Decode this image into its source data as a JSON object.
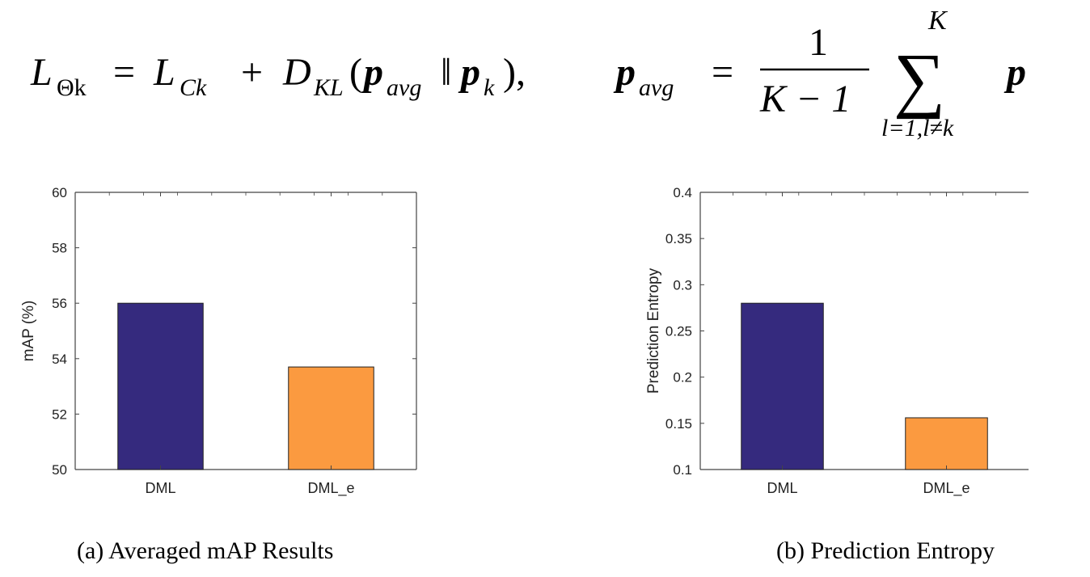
{
  "equation": {
    "L": "L",
    "theta_k": "Θk",
    "eq": "=",
    "L2": "L",
    "C_k": "Ck",
    "plus": "+",
    "D": "D",
    "KL": "KL",
    "lparen": "(",
    "p_avg_a": "p",
    "avg_a": "avg",
    "norm": "‖",
    "p_k": "p",
    "k_sub": "k",
    "rparen_comma": "),",
    "p_avg_b": "p",
    "avg_b": "avg",
    "eq2": "=",
    "num": "1",
    "den": "K − 1",
    "sum": "∑",
    "sum_top": "K",
    "sum_bottom": "l=1,l≠k",
    "p_tail": "p"
  },
  "captions": {
    "a": "(a) Averaged mAP Results",
    "b": "(b) Prediction Entropy"
  },
  "chart_data": [
    {
      "type": "bar",
      "categories": [
        "DML",
        "DML_e"
      ],
      "values": [
        56.0,
        53.7
      ],
      "ylabel": "mAP (%)",
      "ylim": [
        50,
        60
      ],
      "yticks": [
        "50",
        "52",
        "54",
        "56",
        "58",
        "60"
      ],
      "colors": [
        "#352a7e",
        "#fb9a40"
      ],
      "grid": false
    },
    {
      "type": "bar",
      "categories": [
        "DML",
        "DML_e"
      ],
      "values": [
        0.28,
        0.156
      ],
      "ylabel": "Prediction Entropy",
      "ylim": [
        0.1,
        0.4
      ],
      "yticks": [
        "0.1",
        "0.15",
        "0.2",
        "0.25",
        "0.3",
        "0.35",
        "0.4"
      ],
      "colors": [
        "#352a7e",
        "#fb9a40"
      ],
      "grid": false
    }
  ]
}
